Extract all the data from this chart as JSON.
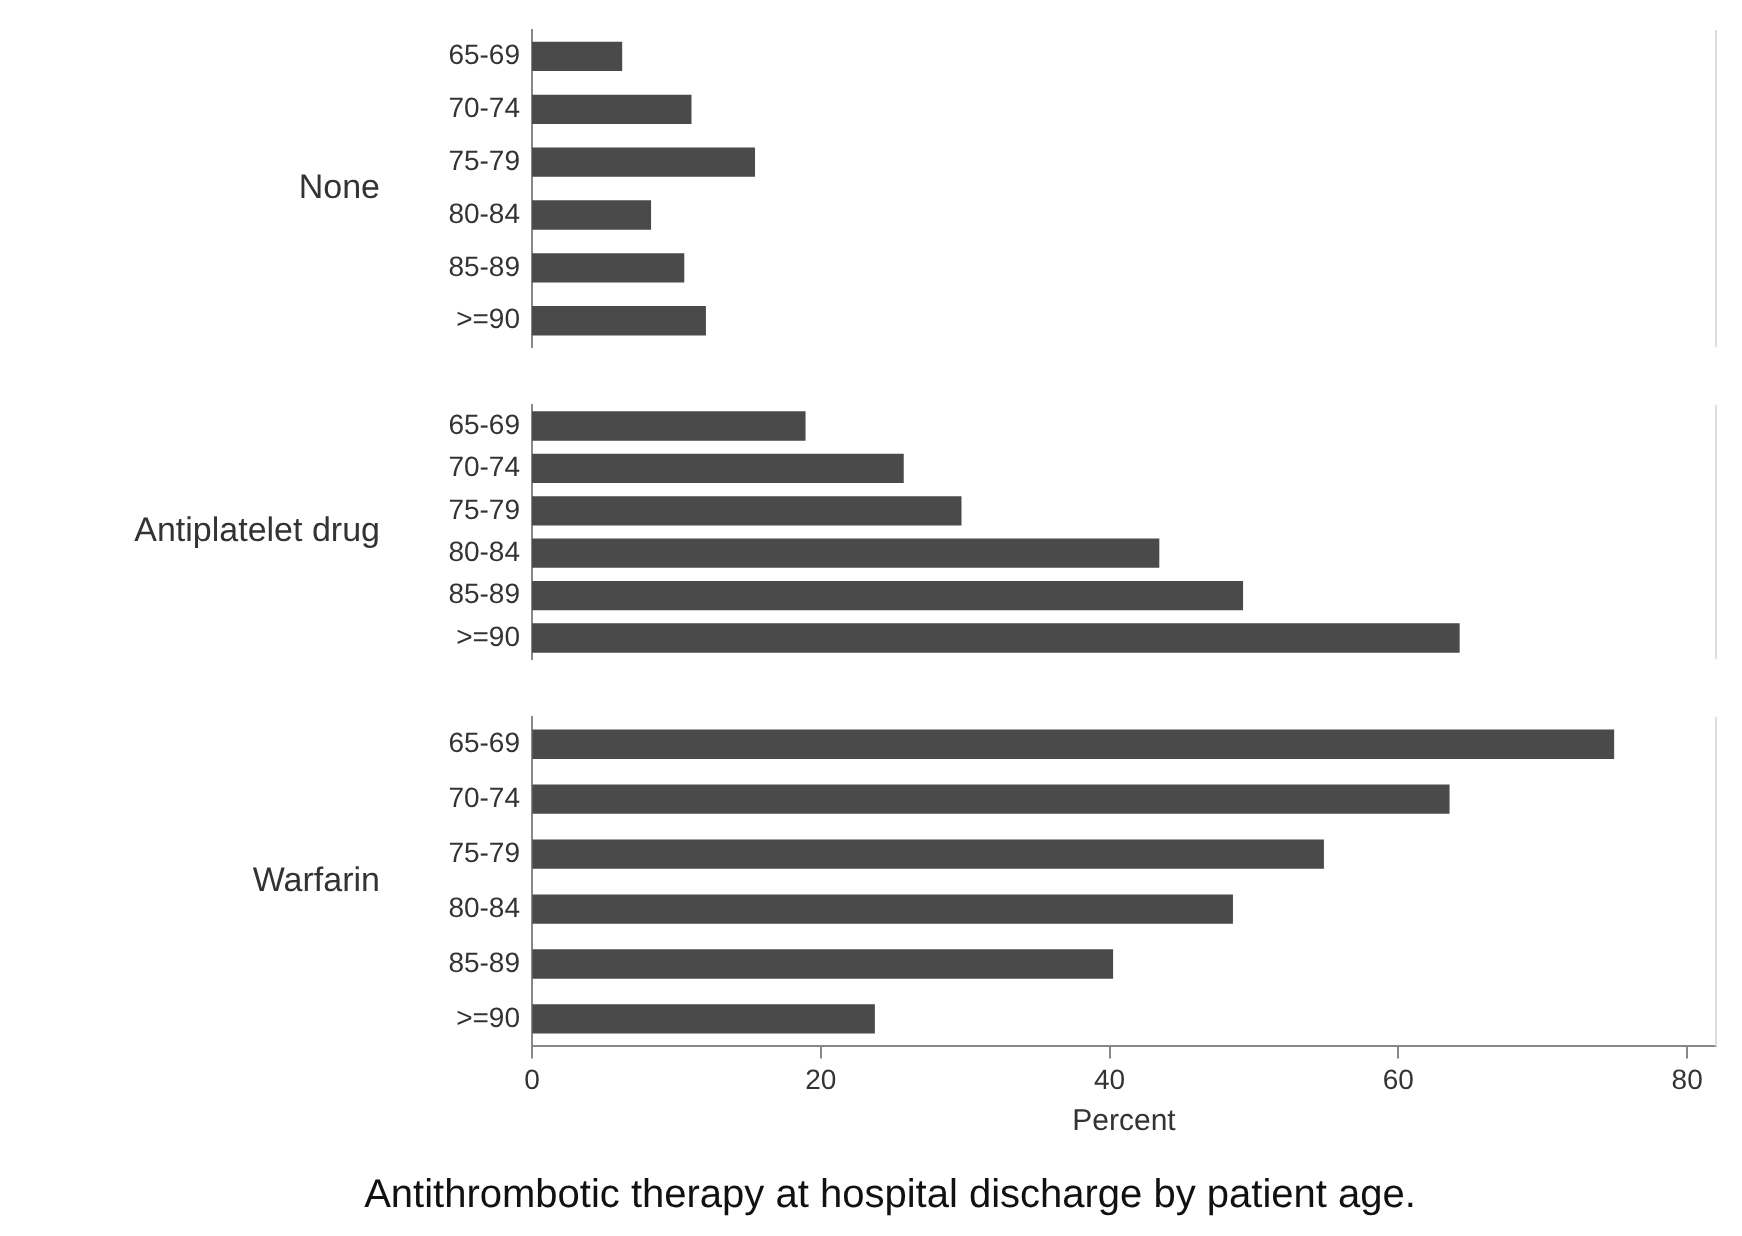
{
  "chart_data": [
    {
      "type": "bar",
      "orientation": "horizontal",
      "ylabel": "None",
      "categories": [
        "65-69",
        "70-74",
        "75-79",
        "80-84",
        "85-89",
        ">=90"
      ],
      "values": [
        6.2,
        11,
        15.4,
        8.2,
        10.5,
        12
      ],
      "color": "#4a4a4a",
      "xlim": [
        0,
        82
      ],
      "xticks": [
        0,
        20,
        40,
        60,
        80
      ],
      "grid": false,
      "legend": false,
      "tick_labels": "y"
    },
    {
      "type": "bar",
      "orientation": "horizontal",
      "ylabel": "Antiplatelet drug",
      "categories": [
        "65-69",
        "70-74",
        "75-79",
        "80-84",
        "85-89",
        ">=90"
      ],
      "values": [
        18.9,
        25.7,
        29.7,
        43.4,
        49.2,
        64.2
      ],
      "color": "#4a4a4a",
      "xlim": [
        0,
        82
      ],
      "xticks": [
        0,
        20,
        40,
        60,
        80
      ],
      "grid": false,
      "legend": false,
      "tick_labels": "y"
    },
    {
      "type": "bar",
      "orientation": "horizontal",
      "ylabel": "Warfarin",
      "xlabel": "Percent",
      "categories": [
        "65-69",
        "70-74",
        "75-79",
        "80-84",
        "85-89",
        ">=90"
      ],
      "values": [
        74.9,
        63.5,
        54.8,
        48.5,
        40.2,
        23.7
      ],
      "color": "#4a4a4a",
      "xlim": [
        0,
        82
      ],
      "xticks": [
        0,
        20,
        40,
        60,
        80
      ],
      "grid": false,
      "legend": false,
      "annotations": [
        "Antithrombotic therapy at hospital discharge by patient age."
      ]
    }
  ]
}
